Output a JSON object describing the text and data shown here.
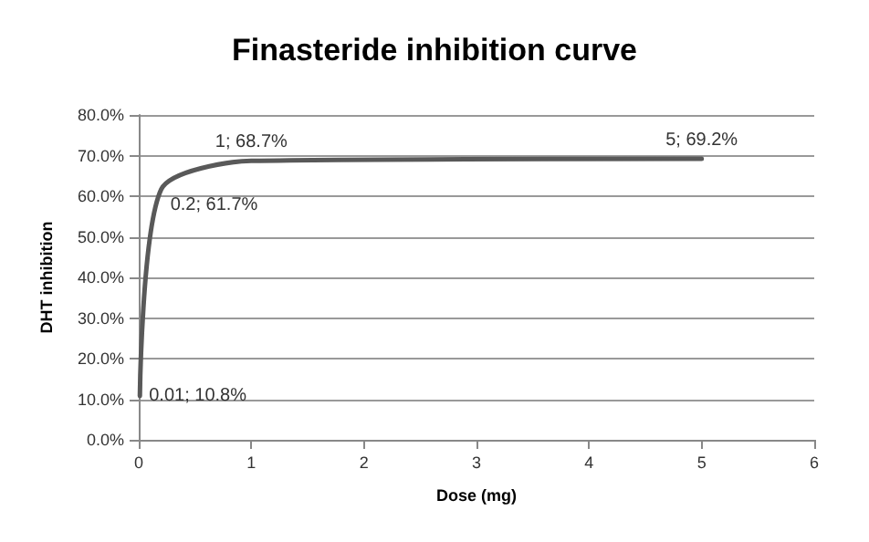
{
  "chart_data": {
    "type": "line",
    "title": "Finasteride inhibition curve",
    "xlabel": "Dose (mg)",
    "ylabel": "DHT inhibition",
    "x": [
      0.01,
      0.2,
      1,
      5
    ],
    "series": [
      {
        "color": "#595959",
        "values": [
          10.8,
          61.7,
          68.7,
          69.2
        ],
        "value_labels": [
          "0.01; 10.8%",
          "0.2; 61.7%",
          "1; 68.7%",
          "5; 69.2%"
        ]
      }
    ],
    "xlim": [
      0,
      6
    ],
    "xticks": [
      0,
      1,
      2,
      3,
      4,
      5,
      6
    ],
    "ylim": [
      0,
      80
    ],
    "yticks": [
      {
        "value": 0,
        "label": "0.0%"
      },
      {
        "value": 10,
        "label": "10.0%"
      },
      {
        "value": 20,
        "label": "20.0%"
      },
      {
        "value": 30,
        "label": "30.0%"
      },
      {
        "value": 40,
        "label": "40.0%"
      },
      {
        "value": 50,
        "label": "50.0%"
      },
      {
        "value": 60,
        "label": "60.0%"
      },
      {
        "value": 70,
        "label": "70.0%"
      },
      {
        "value": 80,
        "label": "80.0%"
      }
    ],
    "grid": "y",
    "marker": "none",
    "line_style": "solid"
  }
}
